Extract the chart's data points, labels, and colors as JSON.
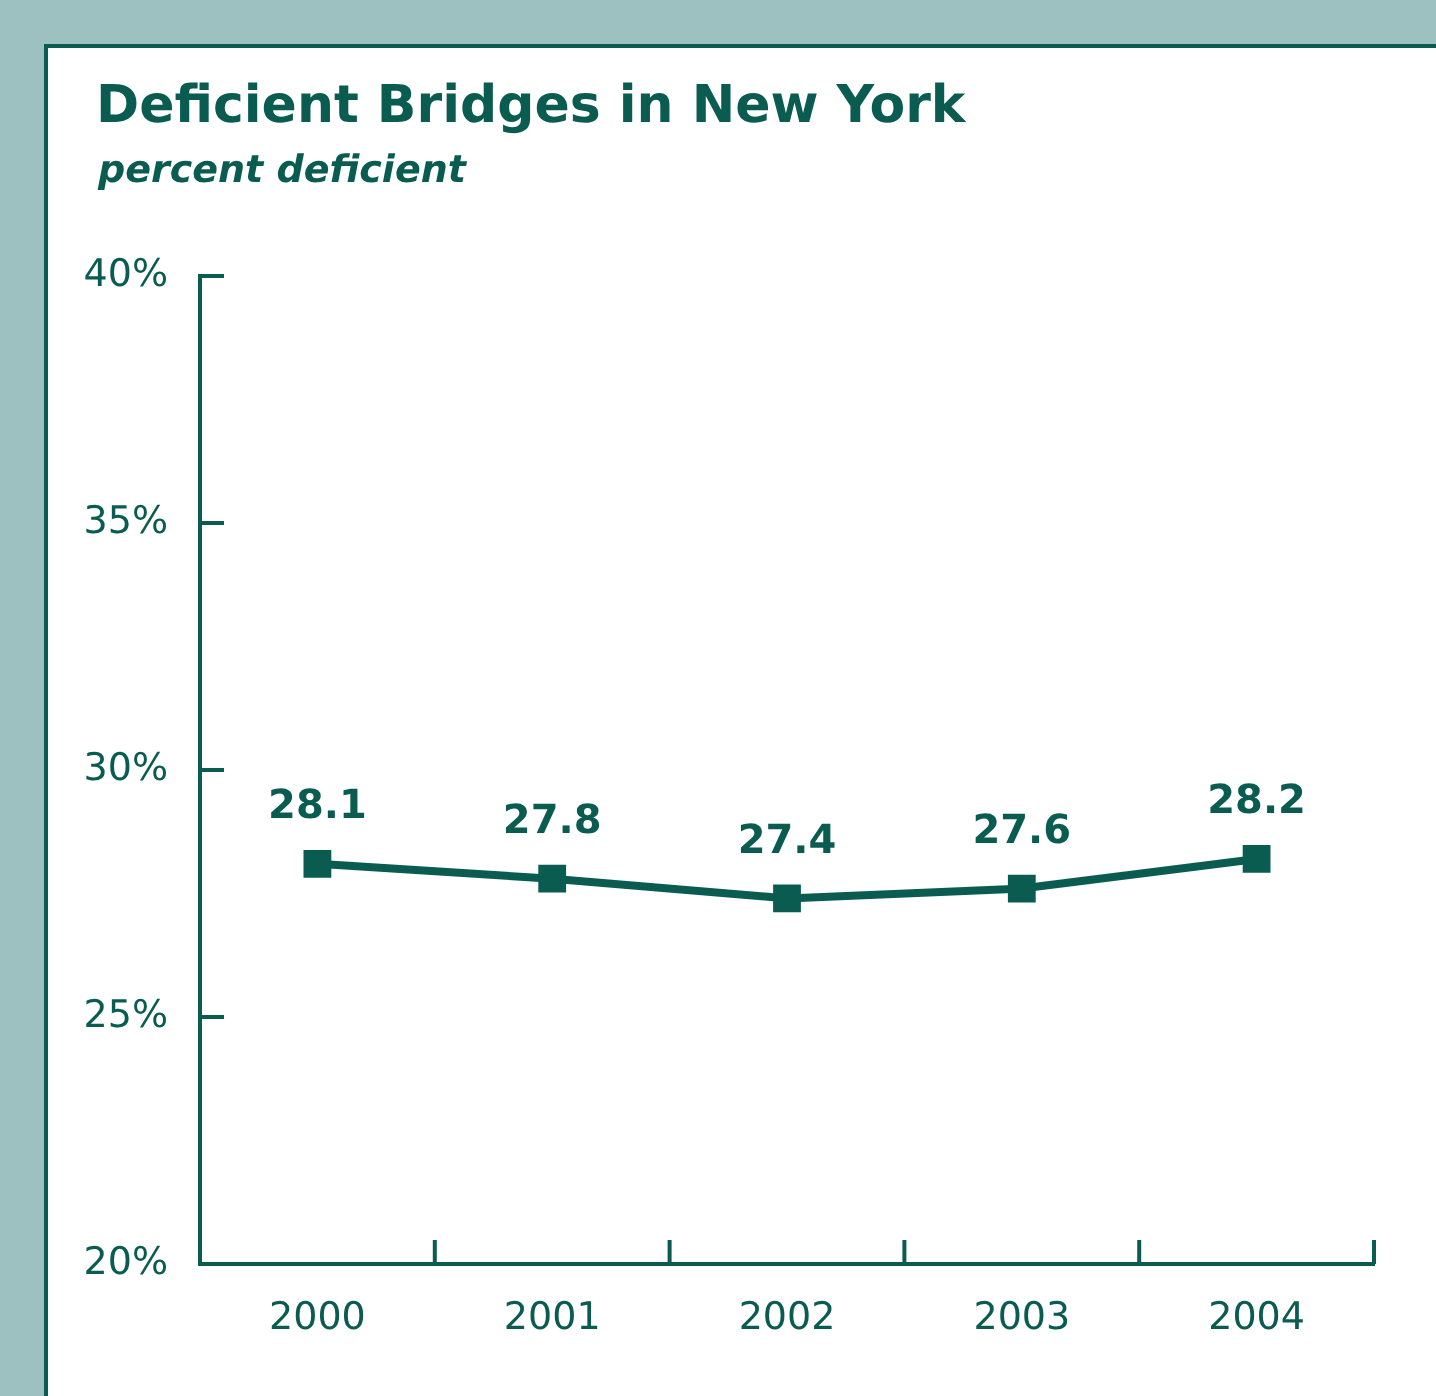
{
  "chart_data": {
    "type": "line",
    "title": "Deficient Bridges in New York",
    "subtitle": "percent deficient",
    "categories": [
      "2000",
      "2001",
      "2002",
      "2003",
      "2004"
    ],
    "series": [
      {
        "color": "#0b5c50",
        "values": [
          28.1,
          27.8,
          27.4,
          27.6,
          28.2
        ]
      }
    ],
    "ylim": [
      20,
      40
    ],
    "yticks": [
      {
        "value": 20,
        "label": "20%"
      },
      {
        "value": 25,
        "label": "25%"
      },
      {
        "value": 30,
        "label": "30%"
      },
      {
        "value": 35,
        "label": "35%"
      },
      {
        "value": 40,
        "label": "40%"
      }
    ],
    "data_labels": true,
    "marker": "square",
    "line_style": "solid",
    "grid": false,
    "legend": false
  }
}
